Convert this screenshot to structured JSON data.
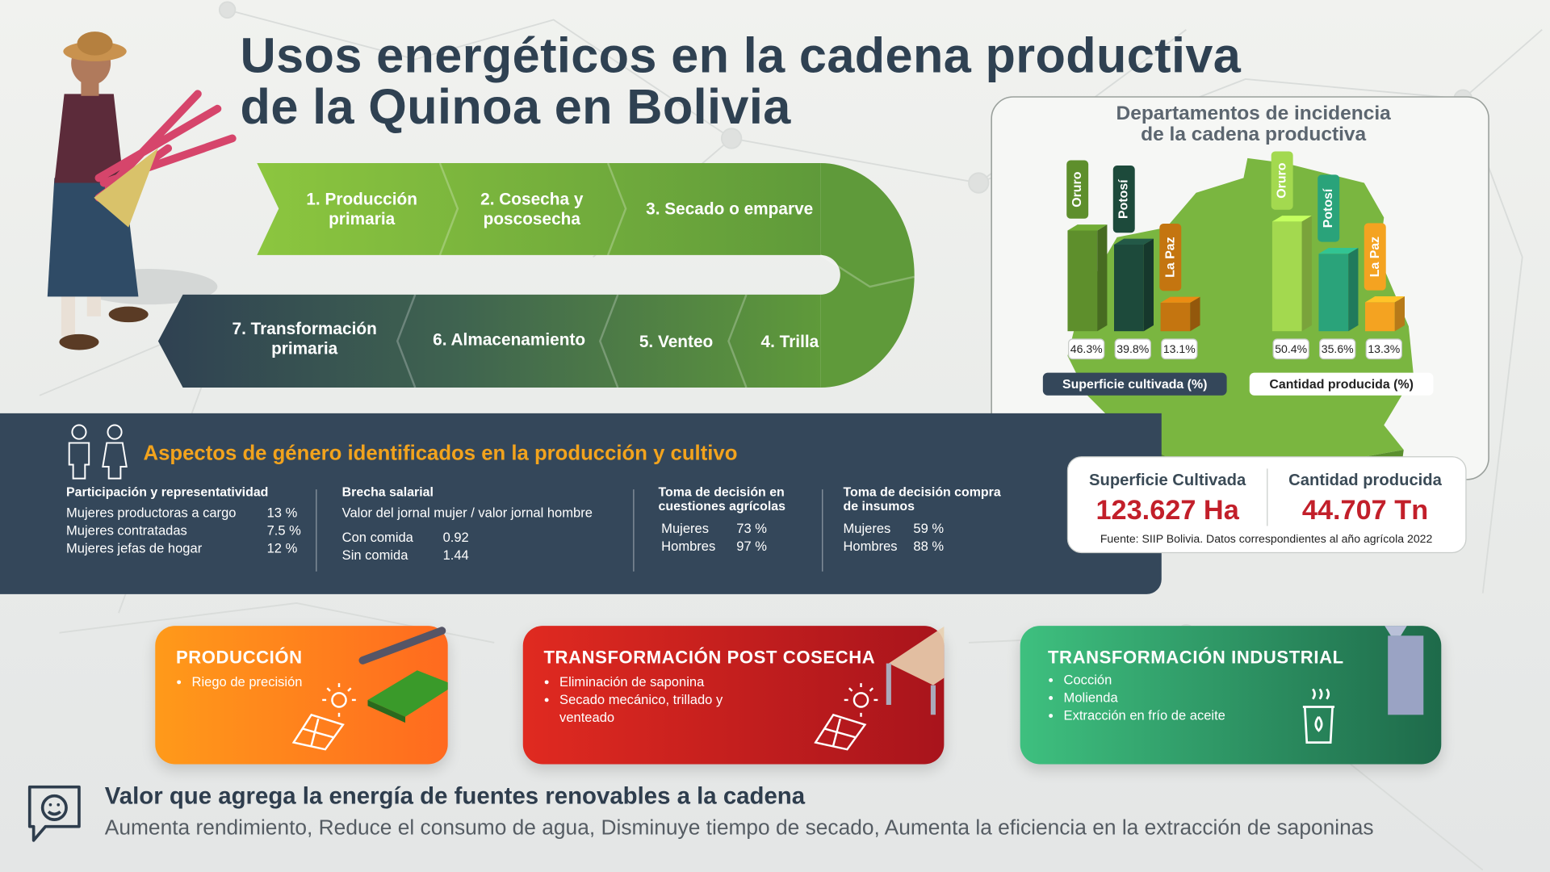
{
  "header": {
    "title_lines": [
      "Usos energéticos en la cadena productiva",
      "de la Quinoa en Bolivia"
    ]
  },
  "process_steps": [
    [
      "1. Producción",
      "primaria"
    ],
    [
      "2. Cosecha y",
      "poscosecha"
    ],
    [
      "3. Secado o emparve"
    ],
    [
      "4. Trilla"
    ],
    [
      "5. Venteo"
    ],
    [
      "6. Almacenamiento"
    ],
    [
      "7. Transformación",
      "primaria"
    ]
  ],
  "map_panel": {
    "title_lines": [
      "Departamentos de incidencia",
      "de la cadena productiva"
    ],
    "charts": [
      {
        "label": "Superficie cultivada (%)",
        "categories": [
          "Oruro",
          "Potosí",
          "La Paz"
        ],
        "values": [
          46.3,
          39.8,
          13.1
        ],
        "value_labels": [
          "46.3%",
          "39.8%",
          "13.1%"
        ],
        "colors": [
          "#5e8f2c",
          "#1d4a3b",
          "#c47510"
        ]
      },
      {
        "label": "Cantidad producida (%)",
        "categories": [
          "Oruro",
          "Potosí",
          "La Paz"
        ],
        "values": [
          50.4,
          35.6,
          13.3
        ],
        "value_labels": [
          "50.4%",
          "35.6%",
          "13.3%"
        ],
        "colors": [
          "#a3d94f",
          "#2aa37a",
          "#f4a321"
        ]
      }
    ]
  },
  "stats": {
    "items": [
      {
        "label": "Superficie Cultivada",
        "value": "123.627 Ha"
      },
      {
        "label": "Cantidad producida",
        "value": "44.707 Tn"
      }
    ],
    "source": "Fuente: SIIP Bolivia. Datos correspondientes al año agrícola 2022"
  },
  "gender": {
    "title": "Aspectos de género identificados en la producción y cultivo",
    "columns": [
      {
        "heading": [
          "Participación y representatividad"
        ],
        "rows": [
          [
            "Mujeres productoras a cargo",
            "13 %"
          ],
          [
            "Mujeres contratadas",
            "7.5 %"
          ],
          [
            "Mujeres jefas de hogar",
            "12 %"
          ]
        ]
      },
      {
        "heading": [
          "Brecha salarial"
        ],
        "subheading": "Valor del jornal mujer / valor jornal hombre",
        "rows": [
          [
            "Con comida",
            "0.92"
          ],
          [
            "Sin comida",
            "1.44"
          ]
        ]
      },
      {
        "heading": [
          "Toma de decisión en",
          "cuestiones agrícolas"
        ],
        "rows": [
          [
            "Mujeres",
            "73 %"
          ],
          [
            "Hombres",
            "97 %"
          ]
        ]
      },
      {
        "heading": [
          "Toma de decisión compra",
          "de insumos"
        ],
        "rows": [
          [
            "Mujeres",
            "59 %"
          ],
          [
            "Hombres",
            "88 %"
          ]
        ]
      }
    ]
  },
  "cards": [
    {
      "title": "PRODUCCIÓN",
      "items": [
        "Riego de precisión"
      ]
    },
    {
      "title": "TRANSFORMACIÓN POST COSECHA",
      "items": [
        "Eliminación de saponina",
        "Secado mecánico, trillado y venteado"
      ]
    },
    {
      "title": "TRANSFORMACIÓN INDUSTRIAL",
      "items": [
        "Cocción",
        "Molienda",
        "Extracción en frío de aceite"
      ]
    }
  ],
  "footer": {
    "title": "Valor que agrega la energía de fuentes renovables a la cadena",
    "text": "Aumenta rendimiento, Reduce el consumo de agua, Disminuye tiempo de secado, Aumenta la eficiencia en la extracción de saponinas"
  }
}
